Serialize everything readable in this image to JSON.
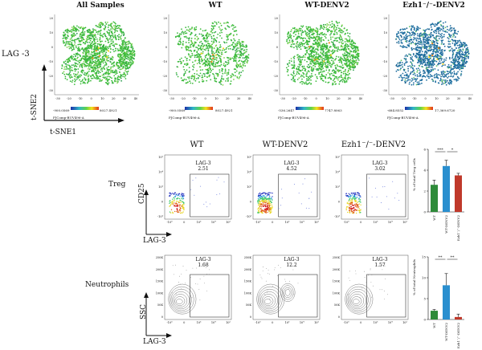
{
  "tsne": {
    "row_label": "LAG -3",
    "xlabel": "t-SNE1",
    "ylabel": "t-SNE2",
    "panels": [
      {
        "title": "All Samples",
        "scale_min": "-900.0569",
        "scale_max": "8027.4921",
        "channel": "FJComp-BUV496-A",
        "color": "#3dbb3d"
      },
      {
        "title": "WT",
        "scale_min": "-900.0569",
        "scale_max": "8027.4921",
        "channel": "FJComp-BUV496-A",
        "color": "#3dbb3d"
      },
      {
        "title": "WT-DENV2",
        "scale_min": "-536.2647",
        "scale_max": "7747.8063",
        "channel": "FJComp-BUV496-A",
        "color": "#3dbb3d"
      },
      {
        "title": "Ezh1⁻/⁻-DENV2",
        "scale_min": "-684.8552",
        "scale_max": "17,369.6720",
        "channel": "FJComp-BUV496-A",
        "color": "#1f6fa0"
      }
    ],
    "x_ticks": [
      "-30",
      "-20",
      "-10",
      "0",
      "10",
      "20",
      "30",
      "40"
    ],
    "y_ticks": [
      "20",
      "10",
      "0",
      "-10",
      "-20",
      "-30"
    ]
  },
  "flow": {
    "titles": [
      "WT",
      "WT-DENV2",
      "Ezh1⁻/⁻-DENV2"
    ],
    "treg": {
      "row_label": "Treg",
      "ylabel": "CD25",
      "xlabel": "LAG-3",
      "gate_name": "LAG-3",
      "gate_values": [
        "2.51",
        "4.52",
        "3.02"
      ],
      "y_ticks": [
        "10⁵",
        "10⁴",
        "10³",
        "0",
        "-10³"
      ],
      "x_ticks": [
        "-10³",
        "0",
        "10³",
        "10⁴",
        "10⁵"
      ]
    },
    "neut": {
      "row_label": "Neutrophils",
      "ylabel": "SSC",
      "xlabel": "LAG-3",
      "gate_name": "LAG-3",
      "gate_values": [
        "1.68",
        "12.2",
        "1.57"
      ],
      "y_ticks": [
        "250K",
        "200K",
        "150K",
        "100K",
        "50K",
        "0"
      ],
      "x_ticks": [
        "-10³",
        "0",
        "10³",
        "10⁴",
        "10⁵"
      ]
    }
  },
  "chart_data": [
    {
      "type": "bar",
      "ylabel": "% of total Treg cells",
      "categories": [
        "WT",
        "WT-DENV2",
        "Ezh1⁻/⁻-DENV2"
      ],
      "values": [
        2.6,
        4.4,
        3.5
      ],
      "errors": [
        0.45,
        0.55,
        0.2
      ],
      "colors": [
        "#2e8b3a",
        "#2a8fcf",
        "#c0392b"
      ],
      "ylim": [
        0,
        6
      ],
      "y_ticks": [
        "6",
        "4",
        "2",
        "0"
      ],
      "significance": [
        {
          "label": "***"
        },
        {
          "label": "*"
        }
      ]
    },
    {
      "type": "bar",
      "ylabel": "% of total Neutrophils",
      "categories": [
        "WT",
        "WT-DENV2",
        "Ezh1⁻/⁻-DENV2"
      ],
      "values": [
        2.1,
        8.2,
        0.6
      ],
      "errors": [
        0.3,
        2.8,
        0.7
      ],
      "colors": [
        "#2e8b3a",
        "#2a8fcf",
        "#c0392b"
      ],
      "ylim": [
        0,
        15
      ],
      "y_ticks": [
        "15",
        "10",
        "5",
        "0"
      ],
      "significance": [
        {
          "label": "**"
        },
        {
          "label": "**"
        }
      ]
    }
  ]
}
